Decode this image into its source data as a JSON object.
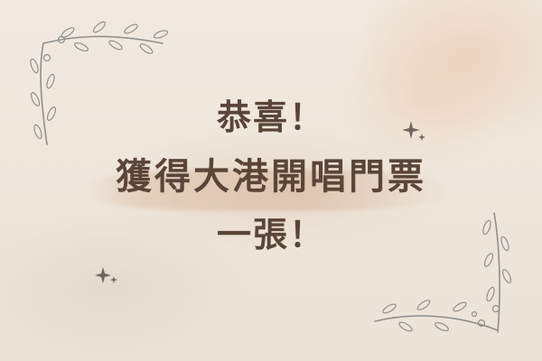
{
  "message": {
    "line1": "恭喜！",
    "line2": "獲得大港開唱門票",
    "line3": "一張！"
  },
  "colors": {
    "text": "#5a4538",
    "ornament": "#8f8f8c",
    "background": "#efe6dc",
    "watercolor_accent": "#e8c4aa"
  },
  "icons": {
    "top_left": "floral-vine-corner-icon",
    "bottom_right": "floral-vine-corner-icon",
    "sparkles": "sparkle-icon"
  }
}
